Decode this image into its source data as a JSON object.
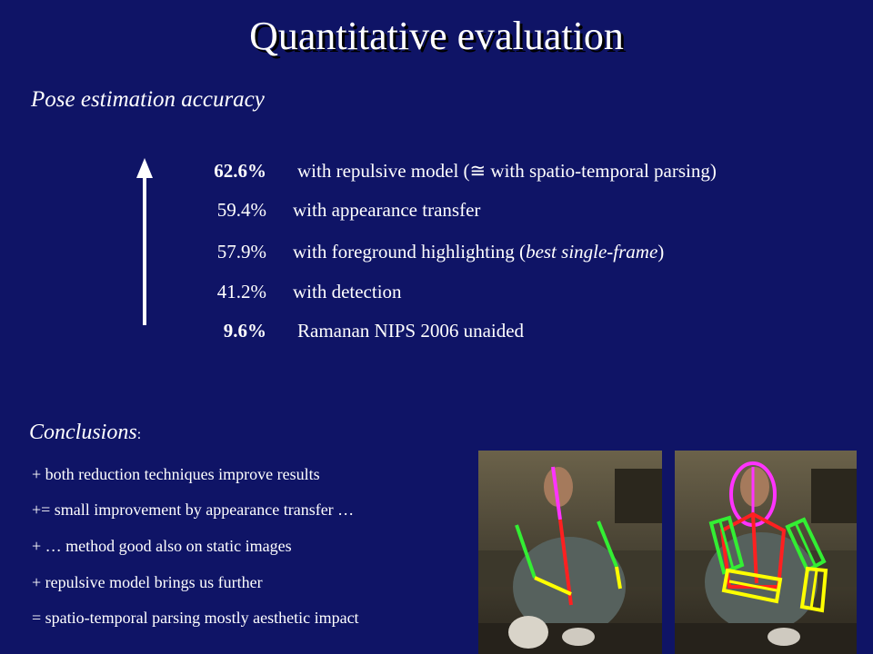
{
  "slide": {
    "title": "Quantitative evaluation",
    "subtitle": "Pose estimation accuracy"
  },
  "results": [
    {
      "percent": "62.6%",
      "description_pre": "with repulsive model (",
      "symbol": "≅",
      "description_post": " with spatio-temporal parsing)",
      "bold_percent": true
    },
    {
      "percent": "59.4%",
      "description_pre": "with appearance transfer",
      "symbol": "",
      "description_post": "",
      "bold_percent": false
    },
    {
      "percent": "57.9%",
      "description_pre": "with foreground highlighting (",
      "italic": "best single-frame",
      "description_post": ")",
      "bold_percent": false
    },
    {
      "percent": "41.2%",
      "description_pre": "with detection",
      "symbol": "",
      "description_post": "",
      "bold_percent": false
    },
    {
      "percent": "9.6%",
      "description_pre": "Ramanan NIPS 2006 unaided",
      "symbol": "",
      "description_post": "",
      "bold_percent": true
    }
  ],
  "conclusions": {
    "title": "Conclusions",
    "colon": ":",
    "items": [
      "+  both reduction techniques improve results",
      "+=  small improvement by appearance transfer …",
      "+  … method good also on static images",
      "+  repulsive model brings us further",
      "= spatio-temporal parsing mostly aesthetic impact"
    ]
  },
  "colors": {
    "background": "#0f1466",
    "text": "#ffffff",
    "pose_head": "#ff33ff",
    "pose_torso": "#ff2020",
    "pose_upper_arm": "#33ee33",
    "pose_lower_arm": "#ffff00"
  }
}
